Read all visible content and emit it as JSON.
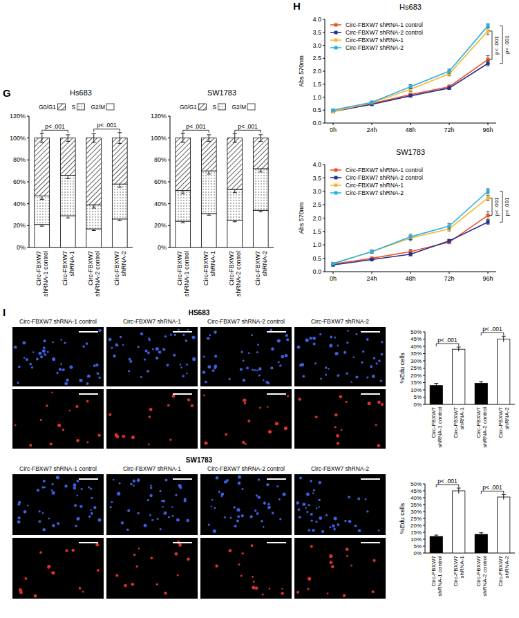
{
  "chart_data": [
    {
      "panel": "G",
      "type": "bar",
      "stacked": true,
      "title": "Hs683",
      "categories": [
        "Circ-FBXW7 shRNA-1 control",
        "Circ-FBXW7 shRNA-1",
        "Circ-FBXW7 shRNA-2 control",
        "Circ-FBXW7 shRNA-2"
      ],
      "series": [
        {
          "name": "G0/G1",
          "color": "#333333",
          "values": [
            53,
            34,
            61,
            42
          ],
          "errors": [
            4,
            3,
            4,
            5
          ]
        },
        {
          "name": "S",
          "color": "#333333",
          "values": [
            26,
            37,
            22,
            32
          ],
          "errors": [
            3,
            3,
            3,
            3
          ]
        },
        {
          "name": "G2/M",
          "color": "#ffffff",
          "values": [
            21,
            29,
            17,
            26
          ],
          "errors": [
            1.5,
            2,
            1.5,
            1.5
          ]
        }
      ],
      "ylim": [
        0,
        120
      ],
      "yticks": [
        {
          "value": 0,
          "label": "0%"
        },
        {
          "value": 20,
          "label": "20%"
        },
        {
          "value": 40,
          "label": "40%"
        },
        {
          "value": 60,
          "label": "60%"
        },
        {
          "value": 80,
          "label": "80%"
        },
        {
          "value": 100,
          "label": "100%"
        },
        {
          "value": 120,
          "label": "120%"
        }
      ],
      "legend": "top",
      "annotations": [
        {
          "text": "p< .001",
          "between": [
            0,
            1
          ]
        },
        {
          "text": "p< .001",
          "between": [
            2,
            3
          ]
        }
      ]
    },
    {
      "type": "bar",
      "stacked": true,
      "title": "SW1783",
      "categories": [
        "Circ-FBXW7 shRNA-1 control",
        "Circ-FBXW7 shRNA-1",
        "Circ-FBXW7 shRNA-2 control",
        "Circ-FBXW7 shRNA-2"
      ],
      "series": [
        {
          "name": "G0/G1",
          "color": "#333333",
          "values": [
            48,
            30,
            47,
            28
          ],
          "errors": [
            4,
            3,
            4,
            3
          ]
        },
        {
          "name": "S",
          "color": "#333333",
          "values": [
            28,
            39,
            28,
            38
          ],
          "errors": [
            3,
            3,
            3,
            3
          ]
        },
        {
          "name": "G2/M",
          "color": "#ffffff",
          "values": [
            24,
            31,
            25,
            34
          ],
          "errors": [
            1.5,
            1.5,
            1.5,
            1.5
          ]
        }
      ],
      "ylim": [
        0,
        120
      ],
      "yticks": [
        {
          "value": 0,
          "label": "0%"
        },
        {
          "value": 20,
          "label": "20%"
        },
        {
          "value": 40,
          "label": "40%"
        },
        {
          "value": 60,
          "label": "60%"
        },
        {
          "value": 80,
          "label": "80%"
        },
        {
          "value": 100,
          "label": "100%"
        },
        {
          "value": 120,
          "label": "120%"
        }
      ],
      "legend": "top",
      "annotations": [
        {
          "text": "p< .001",
          "between": [
            0,
            1
          ]
        },
        {
          "text": "p< .001",
          "between": [
            2,
            3
          ]
        }
      ]
    },
    {
      "panel": "H",
      "type": "line",
      "title": "Hs683",
      "y_label": "Abs 570nm",
      "marker": "square",
      "categories": [
        "0h",
        "24h",
        "48h",
        "72h",
        "96h"
      ],
      "series": [
        {
          "name": "Circ-FBXW7 shRNA-1 control",
          "color": "#e8542c",
          "values": [
            0.45,
            0.75,
            1.1,
            1.4,
            2.45
          ],
          "errors": [
            0.03,
            0.04,
            0.06,
            0.07,
            0.15
          ]
        },
        {
          "name": "Circ-FBXW7 shRNA-2 control",
          "color": "#2b2f8f",
          "values": [
            0.45,
            0.72,
            1.05,
            1.35,
            2.3
          ],
          "errors": [
            0.03,
            0.04,
            0.05,
            0.06,
            0.1
          ]
        },
        {
          "name": "Circ-FBXW7 shRNA-1",
          "color": "#f7b733",
          "values": [
            0.45,
            0.78,
            1.3,
            1.9,
            3.55
          ],
          "errors": [
            0.03,
            0.05,
            0.08,
            0.08,
            0.15
          ]
        },
        {
          "name": "Circ-FBXW7 shRNA-2",
          "color": "#2ab0e4",
          "values": [
            0.5,
            0.8,
            1.4,
            2.0,
            3.75
          ],
          "errors": [
            0.03,
            0.05,
            0.08,
            0.08,
            0.08
          ]
        }
      ],
      "ylim": [
        0,
        4
      ],
      "yticks": [
        {
          "value": 0,
          "label": "0.0"
        },
        0.5,
        {
          "value": 1,
          "label": "1.0"
        },
        1.5,
        {
          "value": 2,
          "label": "2.0"
        },
        2.5,
        {
          "value": 3,
          "label": "3.0"
        },
        3.5,
        {
          "value": 4,
          "label": "4.0"
        }
      ],
      "legend": "upper left",
      "annotations": [
        {
          "text": "p< .001",
          "between": [
            0,
            2
          ]
        },
        {
          "text": "p< .001",
          "between": [
            1,
            3
          ]
        }
      ]
    },
    {
      "type": "line",
      "title": "SW1783",
      "y_label": "Abs 570nm",
      "marker": "square",
      "categories": [
        "0h",
        "24h",
        "48h",
        "72h",
        "96h"
      ],
      "series": [
        {
          "name": "Circ-FBXW7 shRNA-1 control",
          "color": "#e8542c",
          "values": [
            0.28,
            0.5,
            0.75,
            1.1,
            2.1
          ],
          "errors": [
            0.03,
            0.05,
            0.08,
            0.06,
            0.15
          ]
        },
        {
          "name": "Circ-FBXW7 shRNA-2 control",
          "color": "#2b2f8f",
          "values": [
            0.25,
            0.45,
            0.65,
            1.15,
            1.85
          ],
          "errors": [
            0.03,
            0.04,
            0.06,
            0.06,
            0.08
          ]
        },
        {
          "name": "Circ-FBXW7 shRNA-1",
          "color": "#f7b733",
          "values": [
            0.3,
            0.75,
            1.25,
            1.6,
            2.75
          ],
          "errors": [
            0.03,
            0.06,
            0.1,
            0.08,
            0.1
          ]
        },
        {
          "name": "Circ-FBXW7 shRNA-2",
          "color": "#2ab0e4",
          "values": [
            0.3,
            0.75,
            1.3,
            1.7,
            3.0
          ],
          "errors": [
            0.03,
            0.06,
            0.1,
            0.1,
            0.1
          ]
        }
      ],
      "ylim": [
        0,
        4
      ],
      "yticks": [
        {
          "value": 0,
          "label": "0.0"
        },
        0.5,
        {
          "value": 1,
          "label": "1.0"
        },
        1.5,
        {
          "value": 2,
          "label": "2.0"
        },
        2.5,
        {
          "value": 3,
          "label": "3.0"
        },
        3.5,
        {
          "value": 4,
          "label": "4.0"
        }
      ],
      "legend": "upper left",
      "annotations": [
        {
          "text": "p< .001",
          "between": [
            0,
            2
          ]
        },
        {
          "text": "p< .001",
          "between": [
            1,
            3
          ]
        }
      ]
    },
    {
      "type": "bar",
      "y_label": "%Edu cells",
      "categories": [
        "Circ-FBXW7 shRNA-1 control",
        "Circ-FBXW7 shRNA-1",
        "Circ-FBXW7 shRNA-2 control",
        "Circ-FBXW7 shRNA-2"
      ],
      "values": [
        13,
        38,
        14.5,
        45
      ],
      "errors": [
        1.5,
        1.5,
        1.2,
        2
      ],
      "colors": [
        "#000000",
        "#ffffff",
        "#000000",
        "#ffffff"
      ],
      "ylim": [
        0,
        50
      ],
      "yticks": [
        {
          "value": 0,
          "label": "0%"
        },
        {
          "value": 5,
          "label": "5%"
        },
        {
          "value": 10,
          "label": "10%"
        },
        {
          "value": 15,
          "label": "15%"
        },
        {
          "value": 20,
          "label": "20%"
        },
        {
          "value": 25,
          "label": "25%"
        },
        {
          "value": 30,
          "label": "30%"
        },
        {
          "value": 35,
          "label": "35%"
        },
        {
          "value": 40,
          "label": "40%"
        },
        {
          "value": 45,
          "label": "45%"
        },
        {
          "value": 50,
          "label": "50%"
        }
      ],
      "annotations": [
        {
          "text": "p< .001",
          "between": [
            0,
            1
          ]
        },
        {
          "text": "p< .001",
          "between": [
            2,
            3
          ]
        }
      ]
    },
    {
      "type": "bar",
      "y_label": "%Edu cells",
      "categories": [
        "Circ-FBXW7 shRNA-1 control",
        "Circ-FBXW7 shRNA-1",
        "Circ-FBXW7 shRNA-2 control",
        "Circ-FBXW7 shRNA-2"
      ],
      "values": [
        12,
        45,
        13.5,
        40.5
      ],
      "errors": [
        1,
        2,
        1.2,
        1.8
      ],
      "colors": [
        "#000000",
        "#ffffff",
        "#000000",
        "#ffffff"
      ],
      "ylim": [
        0,
        50
      ],
      "yticks": [
        {
          "value": 0,
          "label": "0%"
        },
        {
          "value": 5,
          "label": "5%"
        },
        {
          "value": 10,
          "label": "10%"
        },
        {
          "value": 15,
          "label": "15%"
        },
        {
          "value": 20,
          "label": "20%"
        },
        {
          "value": 25,
          "label": "25%"
        },
        {
          "value": 30,
          "label": "30%"
        },
        {
          "value": 35,
          "label": "35%"
        },
        {
          "value": 40,
          "label": "40%"
        },
        {
          "value": 45,
          "label": "45%"
        },
        {
          "value": 50,
          "label": "50%"
        }
      ],
      "annotations": [
        {
          "text": "p< .001",
          "between": [
            0,
            1
          ]
        },
        {
          "text": "p< .001",
          "between": [
            2,
            3
          ]
        }
      ]
    }
  ],
  "micrographs": {
    "panel": "I",
    "groups": [
      {
        "title": "HS683",
        "columns": [
          "Circ-FBXW7 shRNA-1 control",
          "Circ-FBXW7 shRNA-1",
          "Circ-FBXW7 shRNA-2 control",
          "Circ-FBXW7 shRNA-2"
        ]
      },
      {
        "title": "SW1783",
        "columns": [
          "Circ-FBXW7 shRNA-1 control",
          "Circ-FBXW7 shRNA-1",
          "Circ-FBXW7 shRNA-2 control",
          "Circ-FBXW7 shRNA-2"
        ]
      }
    ]
  }
}
